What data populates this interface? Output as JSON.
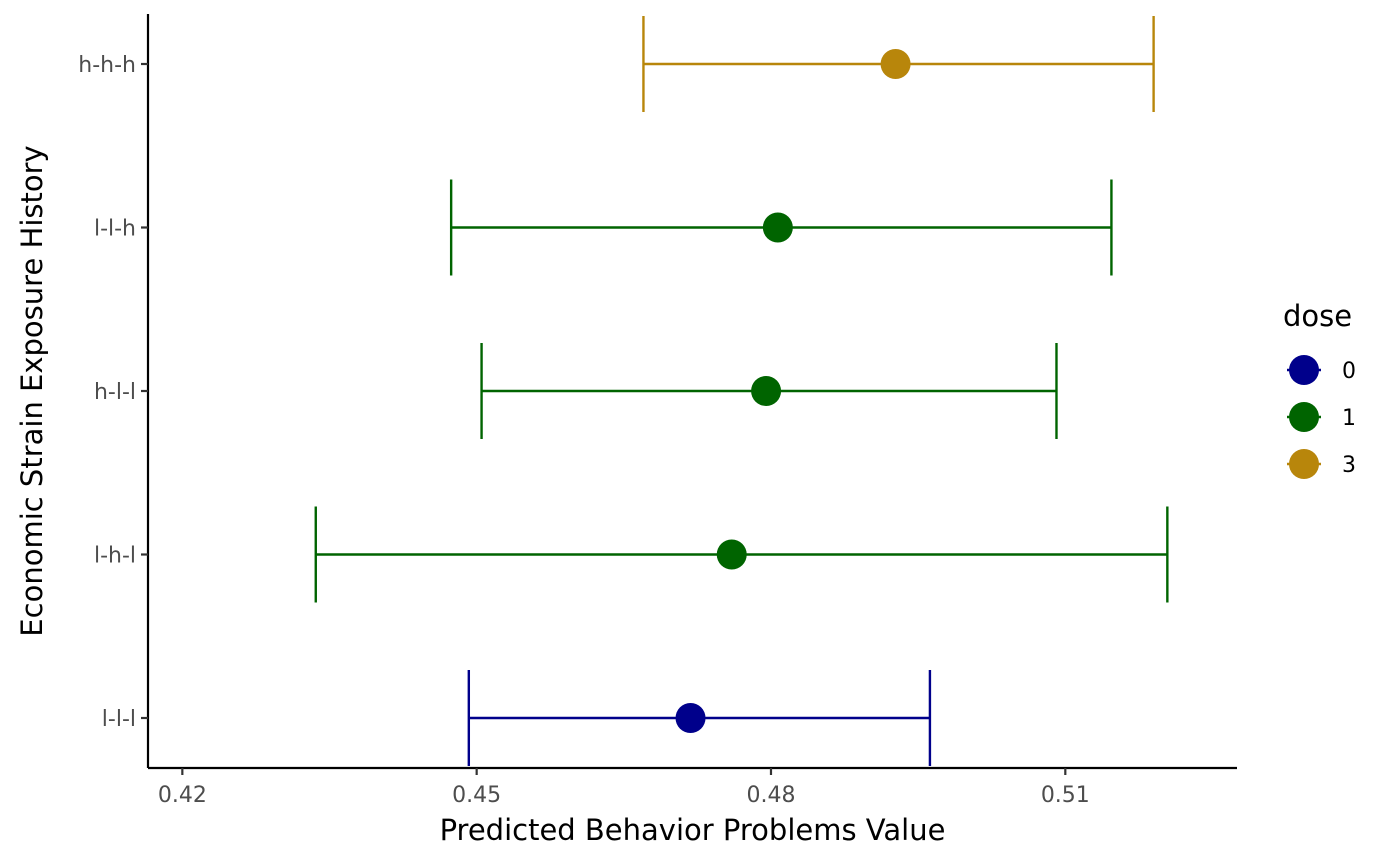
{
  "chart_data": {
    "type": "scatter",
    "subtype": "point-with-errorbars",
    "xlabel": "Predicted Behavior Problems Value",
    "ylabel": "Economic Strain Exposure History",
    "xlim": [
      0.4165,
      0.5275
    ],
    "x_ticks": [
      "0.42",
      "0.45",
      "0.48",
      "0.51"
    ],
    "categories": [
      "l-l-l",
      "l-h-l",
      "h-l-l",
      "l-l-h",
      "h-h-h"
    ],
    "points": [
      {
        "category": "l-l-l",
        "dose": "0",
        "estimate": 0.4718,
        "lower": 0.4492,
        "upper": 0.4962
      },
      {
        "category": "l-h-l",
        "dose": "1",
        "estimate": 0.476,
        "lower": 0.4336,
        "upper": 0.5204
      },
      {
        "category": "h-l-l",
        "dose": "1",
        "estimate": 0.4795,
        "lower": 0.4505,
        "upper": 0.5091
      },
      {
        "category": "l-l-h",
        "dose": "1",
        "estimate": 0.4807,
        "lower": 0.4474,
        "upper": 0.5147
      },
      {
        "category": "h-h-h",
        "dose": "3",
        "estimate": 0.4927,
        "lower": 0.467,
        "upper": 0.519
      }
    ],
    "legend": {
      "title": "dose",
      "placement": "right",
      "items": [
        {
          "label": "0",
          "color": "#00008B"
        },
        {
          "label": "1",
          "color": "#006400"
        },
        {
          "label": "3",
          "color": "#B8860B"
        }
      ]
    },
    "grid": false
  }
}
